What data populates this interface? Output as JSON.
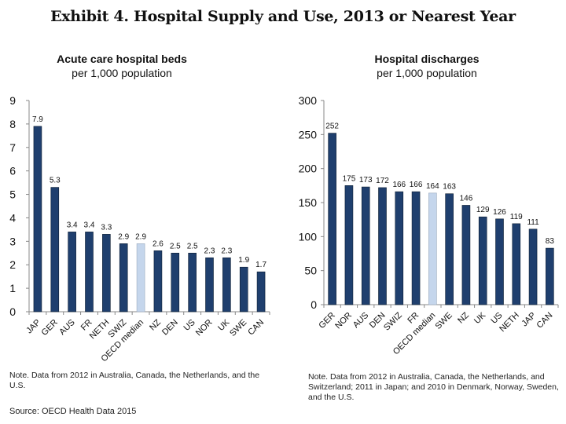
{
  "exhibit_title": "Exhibit 4. Hospital Supply and Use, 2013 or Nearest Year",
  "colors": {
    "bar": "#1f3f6e",
    "median_bar": "#c5d6ec",
    "axis": "#888888"
  },
  "chart_data": [
    {
      "type": "bar",
      "title_line1": "Acute care hospital beds",
      "title_line2": "per 1,000 population",
      "categories": [
        "JAP",
        "GER",
        "AUS",
        "FR",
        "NETH",
        "SWIZ",
        "OECD median",
        "NZ",
        "DEN",
        "US",
        "NOR",
        "UK",
        "SWE",
        "CAN"
      ],
      "values": [
        7.9,
        5.3,
        3.4,
        3.4,
        3.3,
        2.9,
        2.9,
        2.6,
        2.5,
        2.5,
        2.3,
        2.3,
        1.9,
        1.7
      ],
      "labels": [
        "7.9",
        "5.3",
        "3.4",
        "3.4",
        "3.3",
        "2.9",
        "2.9",
        "2.6",
        "2.5",
        "2.5",
        "2.3",
        "2.3",
        "1.9",
        "1.7"
      ],
      "highlight": "OECD median",
      "ylim": [
        0,
        9
      ],
      "yticks": [
        "0",
        "1",
        "2",
        "3",
        "4",
        "5",
        "6",
        "7",
        "8",
        "9"
      ],
      "xlabel": "",
      "ylabel": "",
      "grid": false,
      "note": "Note. Data from 2012 in Australia, Canada, the Netherlands, and the U.S."
    },
    {
      "type": "bar",
      "title_line1": "Hospital discharges",
      "title_line2": "per 1,000 population",
      "categories": [
        "GER",
        "NOR",
        "AUS",
        "DEN",
        "SWIZ",
        "FR",
        "OECD median",
        "SWE",
        "NZ",
        "UK",
        "US",
        "NETH",
        "JAP",
        "CAN"
      ],
      "values": [
        252,
        175,
        173,
        172,
        166,
        166,
        164,
        163,
        146,
        129,
        126,
        119,
        111,
        83
      ],
      "labels": [
        "252",
        "175",
        "173",
        "172",
        "166",
        "166",
        "164",
        "163",
        "146",
        "129",
        "126",
        "119",
        "111",
        "83"
      ],
      "highlight": "OECD median",
      "ylim": [
        0,
        300
      ],
      "yticks": [
        "0",
        "50",
        "100",
        "150",
        "200",
        "250",
        "300"
      ],
      "xlabel": "",
      "ylabel": "",
      "grid": false,
      "note": "Note. Data from 2012 in Australia, Canada, the Netherlands, and Switzerland; 2011 in Japan; and 2010 in Denmark, Norway, Sweden, and the U.S."
    }
  ],
  "source": "Source: OECD Health Data 2015"
}
